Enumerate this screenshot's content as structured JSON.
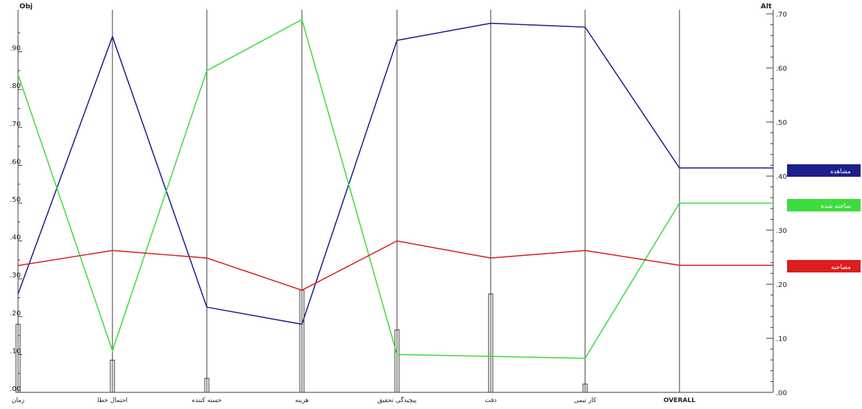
{
  "chart_data": {
    "type": "line",
    "left_axis_title": "Obj",
    "right_axis_title": "Alt",
    "left_axis_ticks": [
      ".00",
      ".10",
      ".20",
      ".30",
      ".40",
      ".50",
      ".60",
      ".70",
      ".80",
      ".90"
    ],
    "right_axis_ticks": [
      ".00",
      ".10",
      ".20",
      ".30",
      ".40",
      ".50",
      ".60",
      ".70"
    ],
    "left_ylim": [
      0,
      1.0
    ],
    "right_ylim": [
      0,
      0.7
    ],
    "categories": [
      "زمان",
      "احتمال خطا",
      "خسته کننده",
      "هزینه",
      "پیچیدگی تحقیق",
      "دقت",
      "کار تیمی",
      "OVERALL"
    ],
    "weights": [
      0.18,
      0.085,
      0.037,
      0.27,
      0.165,
      0.26,
      0.022,
      null
    ],
    "series": [
      {
        "name": "مشاهده",
        "color": "#1e1e8c",
        "values": [
          0.26,
          0.94,
          0.225,
          0.18,
          0.93,
          0.975,
          0.965,
          0.415
        ]
      },
      {
        "name": "ساخته شده",
        "color": "#3cdc3c",
        "values": [
          0.84,
          0.11,
          0.85,
          0.985,
          0.1,
          0.095,
          0.09,
          0.35
        ]
      },
      {
        "name": "مصاحبه",
        "color": "#dc1e1e",
        "values": [
          0.335,
          0.375,
          0.355,
          0.27,
          0.4,
          0.355,
          0.375,
          0.235
        ]
      }
    ],
    "overall_scale": "right",
    "legend_placement": "right",
    "grid": false
  }
}
